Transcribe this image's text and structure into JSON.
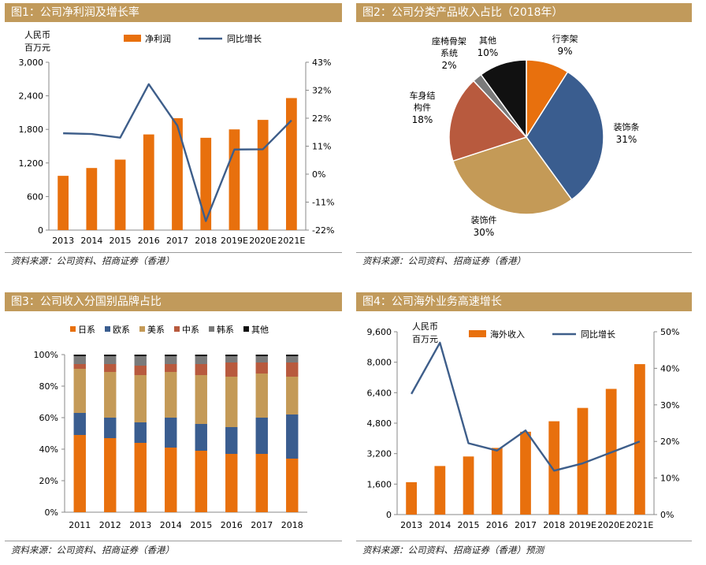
{
  "colors": {
    "orange": "#e8700d",
    "blue": "#3a5d8f",
    "tan": "#c49a57",
    "rust": "#b85a3e",
    "gray": "#7a7a7a",
    "black": "#111111",
    "header": "#c19a5b",
    "line": "#3e5e8a"
  },
  "charts": [
    {
      "id": "fig1",
      "title": "图1：公司净利润及增长率",
      "source": "资料来源：公司资料、招商证券（香港）",
      "unit_label": [
        "人民币",
        "百万元"
      ],
      "chart_data": {
        "type": "bar+line",
        "categories": [
          "2013",
          "2014",
          "2015",
          "2016",
          "2017",
          "2018",
          "2019E",
          "2020E",
          "2021E"
        ],
        "series": [
          {
            "name": "净利润",
            "axis": "left",
            "values": [
              970,
              1110,
              1260,
              1710,
              2000,
              1650,
              1800,
              1970,
              2360
            ]
          },
          {
            "name": "同比增长",
            "axis": "right",
            "values": [
              15.5,
              15.2,
              13.8,
              34.5,
              18.5,
              -18.5,
              9.2,
              9.3,
              20.5
            ]
          }
        ],
        "left_ticks": [
          "0",
          "600",
          "1,200",
          "1,800",
          "2,400",
          "3,000"
        ],
        "right_ticks": [
          "-22%",
          "-11%",
          "0%",
          "11%",
          "22%",
          "32%",
          "43%"
        ],
        "ylim": [
          0,
          3000
        ],
        "y2lim": [
          -22,
          43
        ]
      }
    },
    {
      "id": "fig2",
      "title": "图2：公司分类产品收入占比（2018年）",
      "source": "资料来源：公司资料、招商证券（香港）",
      "chart_data": {
        "type": "pie",
        "slices": [
          {
            "label": "行李架",
            "value": 9,
            "pct": "9%",
            "color": "#e8700d"
          },
          {
            "label": "装饰条",
            "value": 31,
            "pct": "31%",
            "color": "#3a5d8f"
          },
          {
            "label": "装饰件",
            "value": 30,
            "pct": "30%",
            "color": "#c49a57"
          },
          {
            "label": "车身结构件",
            "value": 18,
            "pct": "18%",
            "color": "#b85a3e"
          },
          {
            "label": "座椅骨架系统",
            "value": 2,
            "pct": "2%",
            "color": "#7a7a7a"
          },
          {
            "label": "其他",
            "value": 10,
            "pct": "10%",
            "color": "#111111"
          }
        ]
      }
    },
    {
      "id": "fig3",
      "title": "图3：公司收入分国别品牌占比",
      "source": "资料来源：公司资料、招商证券（香港）",
      "chart_data": {
        "type": "stacked-bar",
        "categories": [
          "2011",
          "2012",
          "2013",
          "2014",
          "2015",
          "2016",
          "2017",
          "2018"
        ],
        "series": [
          {
            "name": "日系",
            "color": "#e8700d",
            "values": [
              49,
              47,
              44,
              41,
              39,
              37,
              37,
              34
            ]
          },
          {
            "name": "欧系",
            "color": "#3a5d8f",
            "values": [
              14,
              13,
              13,
              19,
              17,
              17,
              23,
              28
            ]
          },
          {
            "name": "美系",
            "color": "#c49a57",
            "values": [
              28,
              29,
              30,
              29,
              31,
              32,
              28,
              24
            ]
          },
          {
            "name": "中系",
            "color": "#b85a3e",
            "values": [
              3,
              5,
              6,
              5,
              7,
              9,
              7,
              9
            ]
          },
          {
            "name": "韩系",
            "color": "#7a7a7a",
            "values": [
              5,
              5,
              6,
              5,
              5,
              4,
              4,
              4
            ]
          },
          {
            "name": "其他",
            "color": "#111111",
            "values": [
              1,
              1,
              1,
              1,
              1,
              1,
              1,
              1
            ]
          }
        ],
        "ticks": [
          "0%",
          "20%",
          "40%",
          "60%",
          "80%",
          "100%"
        ],
        "ylim": [
          0,
          100
        ]
      }
    },
    {
      "id": "fig4",
      "title": "图4：公司海外业务高速增长",
      "source": "资料来源：公司资料、招商证券（香港）预测",
      "unit_label": [
        "人民币",
        "百万元"
      ],
      "chart_data": {
        "type": "bar+line",
        "categories": [
          "2013",
          "2014",
          "2015",
          "2016",
          "2017",
          "2018",
          "2019E",
          "2020E",
          "2021E"
        ],
        "series": [
          {
            "name": "海外收入",
            "axis": "left",
            "values": [
              1700,
              2550,
              3050,
              3500,
              4350,
              4900,
              5600,
              6600,
              7900
            ]
          },
          {
            "name": "同比增长",
            "axis": "right",
            "values": [
              33,
              47,
              19.5,
              17.5,
              23,
              12,
              14,
              17,
              20
            ]
          }
        ],
        "left_ticks": [
          "0",
          "1,600",
          "3,200",
          "4,800",
          "6,400",
          "8,000",
          "9,600"
        ],
        "right_ticks": [
          "0%",
          "10%",
          "20%",
          "30%",
          "40%",
          "50%"
        ],
        "ylim": [
          0,
          9600
        ],
        "y2lim": [
          0,
          50
        ]
      }
    }
  ]
}
